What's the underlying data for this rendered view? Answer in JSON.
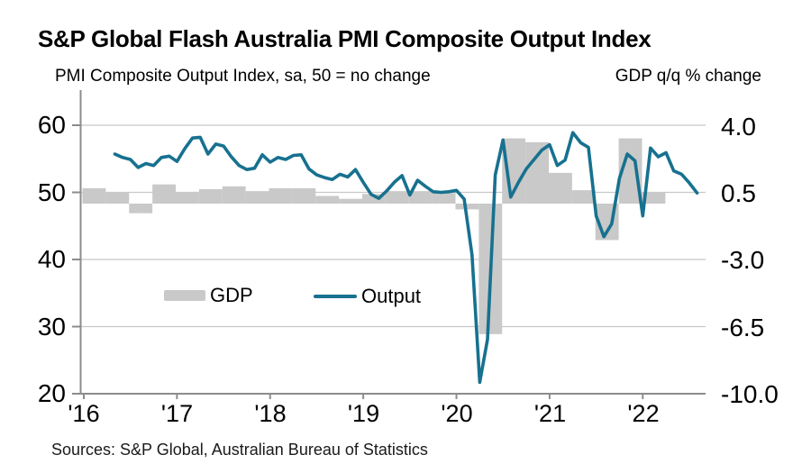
{
  "header": {
    "title": "S&P Global Flash Australia PMI Composite Output Index",
    "subtitle_left": "PMI Composite Output Index, sa, 50 = no change",
    "subtitle_right": "GDP q/q % change"
  },
  "legend": {
    "gdp_label": "GDP",
    "output_label": "Output"
  },
  "footer": {
    "source": "Sources: S&P Global, Australian Bureau of Statistics"
  },
  "colors": {
    "line": "#17718F",
    "bar": "#C9C9C9",
    "grid": "#C8C8C8",
    "axis": "#8C8C8C",
    "text": "#000000"
  },
  "chart_data": {
    "type": "combo bar + line, dual y-axis",
    "title": "S&P Global Flash Australia PMI Composite Output Index",
    "x_ticks": [
      "'16",
      "'17",
      "'18",
      "'19",
      "'20",
      "'21",
      "'22"
    ],
    "left_axis": {
      "label": "PMI Composite Output Index, sa, 50 = no change",
      "ticks": [
        "60",
        "50",
        "40",
        "30",
        "20"
      ],
      "min": 20,
      "max": 62
    },
    "right_axis": {
      "label": "GDP q/q % change",
      "ticks": [
        "4.0",
        "0.5",
        "-3.0",
        "-6.5",
        "-10.0"
      ],
      "min": -10.0,
      "max": 4.0
    },
    "axis_alignment": "PMI 60 aligns with GDP 4.0; PMI 50 with GDP 0.5; each 10 PMI points = 3.5 GDP points",
    "grid": "horizontal gridlines at left-axis ticks",
    "legend_position": "inside plot, lower center",
    "series": [
      {
        "name": "GDP",
        "type": "bar",
        "axis": "right",
        "frequency": "quarterly",
        "start": "2016-Q1",
        "end": "2022-Q1",
        "values": [
          0.8,
          0.6,
          -0.5,
          1.0,
          0.6,
          0.75,
          0.9,
          0.65,
          0.8,
          0.8,
          0.4,
          0.25,
          0.5,
          0.65,
          0.65,
          0.55,
          -0.3,
          -6.8,
          3.4,
          3.2,
          1.6,
          0.7,
          -1.9,
          3.4,
          0.6
        ]
      },
      {
        "name": "Output",
        "type": "line",
        "axis": "left",
        "frequency": "monthly",
        "start": "2016-05",
        "end": "2022-08",
        "values": [
          55.7,
          55.2,
          54.9,
          53.7,
          54.3,
          54.0,
          55.2,
          55.4,
          54.6,
          56.5,
          58.1,
          58.2,
          55.7,
          57.2,
          56.9,
          55.3,
          54.0,
          53.4,
          53.6,
          55.6,
          54.5,
          55.2,
          54.9,
          55.5,
          55.6,
          53.5,
          52.6,
          52.2,
          51.9,
          52.7,
          52.3,
          53.4,
          51.5,
          49.7,
          49.1,
          50.2,
          51.5,
          52.5,
          49.6,
          51.8,
          50.9,
          50.1,
          50.0,
          50.1,
          50.3,
          49.0,
          40.7,
          21.7,
          28.1,
          52.6,
          57.8,
          49.3,
          51.5,
          53.5,
          54.9,
          56.3,
          57.1,
          54.0,
          54.8,
          58.9,
          57.4,
          56.7,
          46.5,
          43.4,
          45.3,
          52.1,
          55.7,
          54.7,
          46.5,
          56.6,
          55.3,
          55.9,
          53.2,
          52.7,
          51.4,
          49.9
        ]
      }
    ],
    "source": "Sources: S&P Global, Australian Bureau of Statistics"
  }
}
